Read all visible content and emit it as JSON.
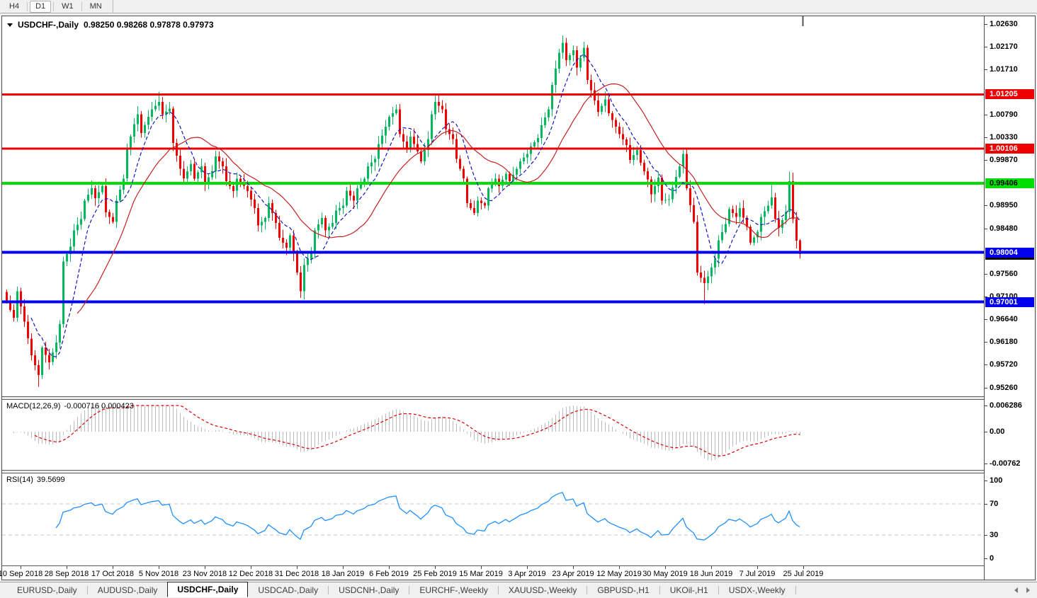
{
  "toolbar": {
    "timeframes": [
      {
        "label": "H4",
        "active": false
      },
      {
        "label": "D1",
        "active": true
      },
      {
        "label": "W1",
        "active": false
      },
      {
        "label": "MN",
        "active": false
      }
    ]
  },
  "chart": {
    "title_symbol": "USDCHF-,Daily",
    "ohlc_text": "0.98250 0.98268 0.97878 0.97973"
  },
  "chart_data": {
    "type": "candlestick",
    "symbol": "USDCHF",
    "timeframe": "Daily",
    "num_candles": 225,
    "last_candle": {
      "open": 0.9825,
      "high": 0.98268,
      "low": 0.97878,
      "close": 0.97973
    },
    "price_axis": {
      "max": 1.0263,
      "min": 0.9526,
      "ticks": [
        "1.02630",
        "1.02170",
        "1.01710",
        "1.00790",
        "1.00330",
        "0.99870",
        "0.98950",
        "0.98480",
        "0.97560",
        "0.97100",
        "0.96640",
        "0.96180",
        "0.95720",
        "0.95260"
      ]
    },
    "x_axis_dates": [
      "10 Sep 2018",
      "28 Sep 2018",
      "17 Oct 2018",
      "5 Nov 2018",
      "23 Nov 2018",
      "12 Dec 2018",
      "31 Dec 2018",
      "18 Jan 2019",
      "6 Feb 2019",
      "25 Feb 2019",
      "15 Mar 2019",
      "3 Apr 2019",
      "23 Apr 2019",
      "12 May 2019",
      "30 May 2019",
      "18 Jun 2019",
      "7 Jul 2019",
      "25 Jul 2019"
    ],
    "hlines": [
      {
        "price": "1.01205",
        "color": "#ee0000",
        "text_color": "#ffffff",
        "thickness": 3
      },
      {
        "price": "1.00106",
        "color": "#ee0000",
        "text_color": "#ffffff",
        "thickness": 3
      },
      {
        "price": "0.99406",
        "color": "#00dd00",
        "text_color": "#000000",
        "thickness": 4
      },
      {
        "price": "0.98004",
        "color": "#0000ee",
        "text_color": "#ffffff",
        "thickness": 4
      },
      {
        "price": "0.97001",
        "color": "#0000ee",
        "text_color": "#ffffff",
        "thickness": 4
      }
    ],
    "current_price_marker": {
      "value": "0.97973",
      "bg": "#000000",
      "fg": "#ffffff"
    },
    "moving_averages": [
      {
        "period": 8,
        "color": "#1515c4",
        "dash": "5,3"
      },
      {
        "period": 21,
        "color": "#c42222",
        "dash": ""
      }
    ],
    "colors": {
      "up": "#00b95e",
      "down": "#f20000",
      "macd_hist": "#bcbcbc",
      "macd_signal": "#dd0000",
      "rsi": "#1e90ff",
      "levels": "#c8c8c8"
    },
    "close_anchors": [
      [
        0,
        0.97
      ],
      [
        2,
        0.9668
      ],
      [
        3,
        0.9722
      ],
      [
        5,
        0.966
      ],
      [
        7,
        0.9592
      ],
      [
        9,
        0.9552
      ],
      [
        10,
        0.9608
      ],
      [
        12,
        0.9578
      ],
      [
        14,
        0.9618
      ],
      [
        15,
        0.9655
      ],
      [
        16,
        0.9782
      ],
      [
        18,
        0.9812
      ],
      [
        19,
        0.9845
      ],
      [
        21,
        0.9868
      ],
      [
        22,
        0.9905
      ],
      [
        24,
        0.993
      ],
      [
        25,
        0.991
      ],
      [
        27,
        0.9935
      ],
      [
        28,
        0.9882
      ],
      [
        30,
        0.9862
      ],
      [
        31,
        0.9905
      ],
      [
        33,
        0.995
      ],
      [
        34,
        1.001
      ],
      [
        36,
        1.006
      ],
      [
        37,
        1.008
      ],
      [
        38,
        1.0042
      ],
      [
        40,
        1.0075
      ],
      [
        41,
        1.009
      ],
      [
        43,
        1.0105
      ],
      [
        44,
        1.008
      ],
      [
        46,
        1.0092
      ],
      [
        47,
        1.0022
      ],
      [
        49,
        0.997
      ],
      [
        50,
        0.995
      ],
      [
        52,
        0.998
      ],
      [
        53,
        0.995
      ],
      [
        55,
        0.9975
      ],
      [
        56,
        0.994
      ],
      [
        58,
        0.9965
      ],
      [
        59,
        0.9995
      ],
      [
        61,
        0.9975
      ],
      [
        62,
        0.9945
      ],
      [
        64,
        0.9925
      ],
      [
        65,
        0.995
      ],
      [
        67,
        0.9935
      ],
      [
        68,
        0.9925
      ],
      [
        70,
        0.989
      ],
      [
        71,
        0.9855
      ],
      [
        73,
        0.987
      ],
      [
        74,
        0.99
      ],
      [
        76,
        0.986
      ],
      [
        77,
        0.983
      ],
      [
        79,
        0.981
      ],
      [
        80,
        0.9835
      ],
      [
        82,
        0.976
      ],
      [
        83,
        0.9722
      ],
      [
        84,
        0.9775
      ],
      [
        86,
        0.98
      ],
      [
        87,
        0.9845
      ],
      [
        89,
        0.987
      ],
      [
        90,
        0.9845
      ],
      [
        92,
        0.986
      ],
      [
        93,
        0.9885
      ],
      [
        95,
        0.9895
      ],
      [
        96,
        0.9925
      ],
      [
        98,
        0.9905
      ],
      [
        99,
        0.993
      ],
      [
        101,
        0.995
      ],
      [
        102,
        0.9975
      ],
      [
        104,
        0.999
      ],
      [
        105,
        1.002
      ],
      [
        107,
        1.0055
      ],
      [
        108,
        1.0075
      ],
      [
        110,
        1.009
      ],
      [
        111,
        1.004
      ],
      [
        113,
        1.001
      ],
      [
        114,
        1.0035
      ],
      [
        116,
        1.0005
      ],
      [
        117,
        0.9985
      ],
      [
        119,
        1.003
      ],
      [
        120,
        1.008
      ],
      [
        121,
        1.0105
      ],
      [
        123,
        1.009
      ],
      [
        124,
        1.005
      ],
      [
        126,
        1.003
      ],
      [
        127,
        0.999
      ],
      [
        129,
        0.995
      ],
      [
        130,
        0.99
      ],
      [
        132,
        0.988
      ],
      [
        133,
        0.9905
      ],
      [
        135,
        0.9895
      ],
      [
        136,
        0.993
      ],
      [
        138,
        0.995
      ],
      [
        139,
        0.9935
      ],
      [
        141,
        0.996
      ],
      [
        142,
        0.9945
      ],
      [
        144,
        0.997
      ],
      [
        145,
        0.9985
      ],
      [
        147,
        1.0
      ],
      [
        148,
        1.0015
      ],
      [
        150,
        1.0032
      ],
      [
        151,
        1.0058
      ],
      [
        153,
        1.009
      ],
      [
        154,
        1.014
      ],
      [
        156,
        1.0205
      ],
      [
        157,
        1.0225
      ],
      [
        158,
        1.019
      ],
      [
        160,
        1.021
      ],
      [
        161,
        1.0175
      ],
      [
        163,
        1.0215
      ],
      [
        164,
        1.015
      ],
      [
        166,
        1.0108
      ],
      [
        167,
        1.0085
      ],
      [
        169,
        1.011
      ],
      [
        170,
        1.0082
      ],
      [
        172,
        1.0055
      ],
      [
        173,
        1.004
      ],
      [
        175,
        1.0018
      ],
      [
        176,
        0.9988
      ],
      [
        178,
        1.0008
      ],
      [
        179,
        0.9982
      ],
      [
        181,
        0.9948
      ],
      [
        182,
        0.9918
      ],
      [
        184,
        0.9952
      ],
      [
        185,
        0.9905
      ],
      [
        187,
        0.9908
      ],
      [
        188,
        0.9932
      ],
      [
        190,
        0.9975
      ],
      [
        191,
        1.0
      ],
      [
        192,
        0.993
      ],
      [
        194,
        0.9862
      ],
      [
        195,
        0.976
      ],
      [
        197,
        0.9738
      ],
      [
        198,
        0.9752
      ],
      [
        200,
        0.9788
      ],
      [
        201,
        0.9825
      ],
      [
        203,
        0.9858
      ],
      [
        204,
        0.9888
      ],
      [
        206,
        0.9872
      ],
      [
        207,
        0.989
      ],
      [
        209,
        0.9852
      ],
      [
        210,
        0.982
      ],
      [
        212,
        0.9842
      ],
      [
        213,
        0.9872
      ],
      [
        215,
        0.9895
      ],
      [
        216,
        0.9912
      ],
      [
        217,
        0.9868
      ],
      [
        218,
        0.985
      ],
      [
        220,
        0.9882
      ],
      [
        221,
        0.9945
      ],
      [
        222,
        0.9868
      ],
      [
        223,
        0.9824
      ],
      [
        224,
        0.97973
      ]
    ],
    "wick_overrides": [
      {
        "i": 9,
        "low": 0.9528
      },
      {
        "i": 16,
        "low": 0.9648
      },
      {
        "i": 43,
        "high": 1.0125
      },
      {
        "i": 83,
        "low": 0.9708
      },
      {
        "i": 110,
        "high": 1.01
      },
      {
        "i": 121,
        "high": 1.0122
      },
      {
        "i": 157,
        "high": 1.024
      },
      {
        "i": 163,
        "high": 1.0227
      },
      {
        "i": 191,
        "high": 1.0008
      },
      {
        "i": 197,
        "low": 0.9696
      },
      {
        "i": 216,
        "high": 0.9942
      },
      {
        "i": 221,
        "high": 0.9964
      }
    ],
    "macd": {
      "label": "MACD(12,26,9)",
      "values_text": "-0.000716 0.000423",
      "params": [
        12,
        26,
        9
      ],
      "max": 0.006286,
      "min": -0.00762,
      "axis_ticks": [
        "0.006286",
        "0.00",
        "-0.00762"
      ]
    },
    "rsi": {
      "label": "RSI(14)",
      "value": "39.5699",
      "period": 14,
      "levels": [
        70,
        30
      ],
      "axis_ticks": [
        "100",
        "70",
        "30",
        "0"
      ]
    }
  },
  "tabs": [
    {
      "label": "EURUSD-,Daily",
      "active": false
    },
    {
      "label": "AUDUSD-,Daily",
      "active": false
    },
    {
      "label": "USDCHF-,Daily",
      "active": true
    },
    {
      "label": "USDCAD-,Daily",
      "active": false
    },
    {
      "label": "USDCNH-,Daily",
      "active": false
    },
    {
      "label": "EURCHF-,Weekly",
      "active": false
    },
    {
      "label": "XAUUSD-,Weekly",
      "active": false
    },
    {
      "label": "GBPUSD-,H1",
      "active": false
    },
    {
      "label": "UKOil-,H1",
      "active": false
    },
    {
      "label": "USDX-,Weekly",
      "active": false
    }
  ]
}
